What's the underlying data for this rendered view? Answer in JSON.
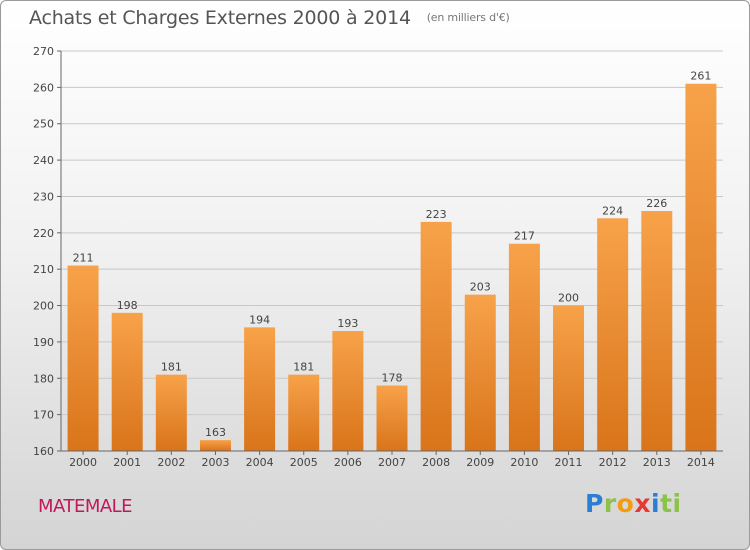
{
  "header": {
    "title": "Achats et Charges Externes 2000 à 2014",
    "subtitle": "(en milliers d'€)"
  },
  "commune": "MATEMALE",
  "logo": {
    "text": "Proxiti",
    "letters": [
      "P",
      "r",
      "o",
      "x",
      "i",
      "ti"
    ]
  },
  "colors": {
    "bar": "#f0922f",
    "bar_dark": "#d9741a",
    "commune": "#c2185b"
  },
  "chart_data": {
    "type": "bar",
    "title": "Achats et Charges Externes 2000 à 2014",
    "categories": [
      "2000",
      "2001",
      "2002",
      "2003",
      "2004",
      "2005",
      "2006",
      "2007",
      "2008",
      "2009",
      "2010",
      "2011",
      "2012",
      "2013",
      "2014"
    ],
    "values": [
      211,
      198,
      181,
      163,
      194,
      181,
      193,
      178,
      223,
      203,
      217,
      200,
      224,
      226,
      261
    ],
    "ylim": [
      160,
      270
    ],
    "yticks": [
      160,
      170,
      180,
      190,
      200,
      210,
      220,
      230,
      240,
      250,
      260,
      270
    ],
    "grid": true,
    "xlabel": "",
    "ylabel": ""
  }
}
